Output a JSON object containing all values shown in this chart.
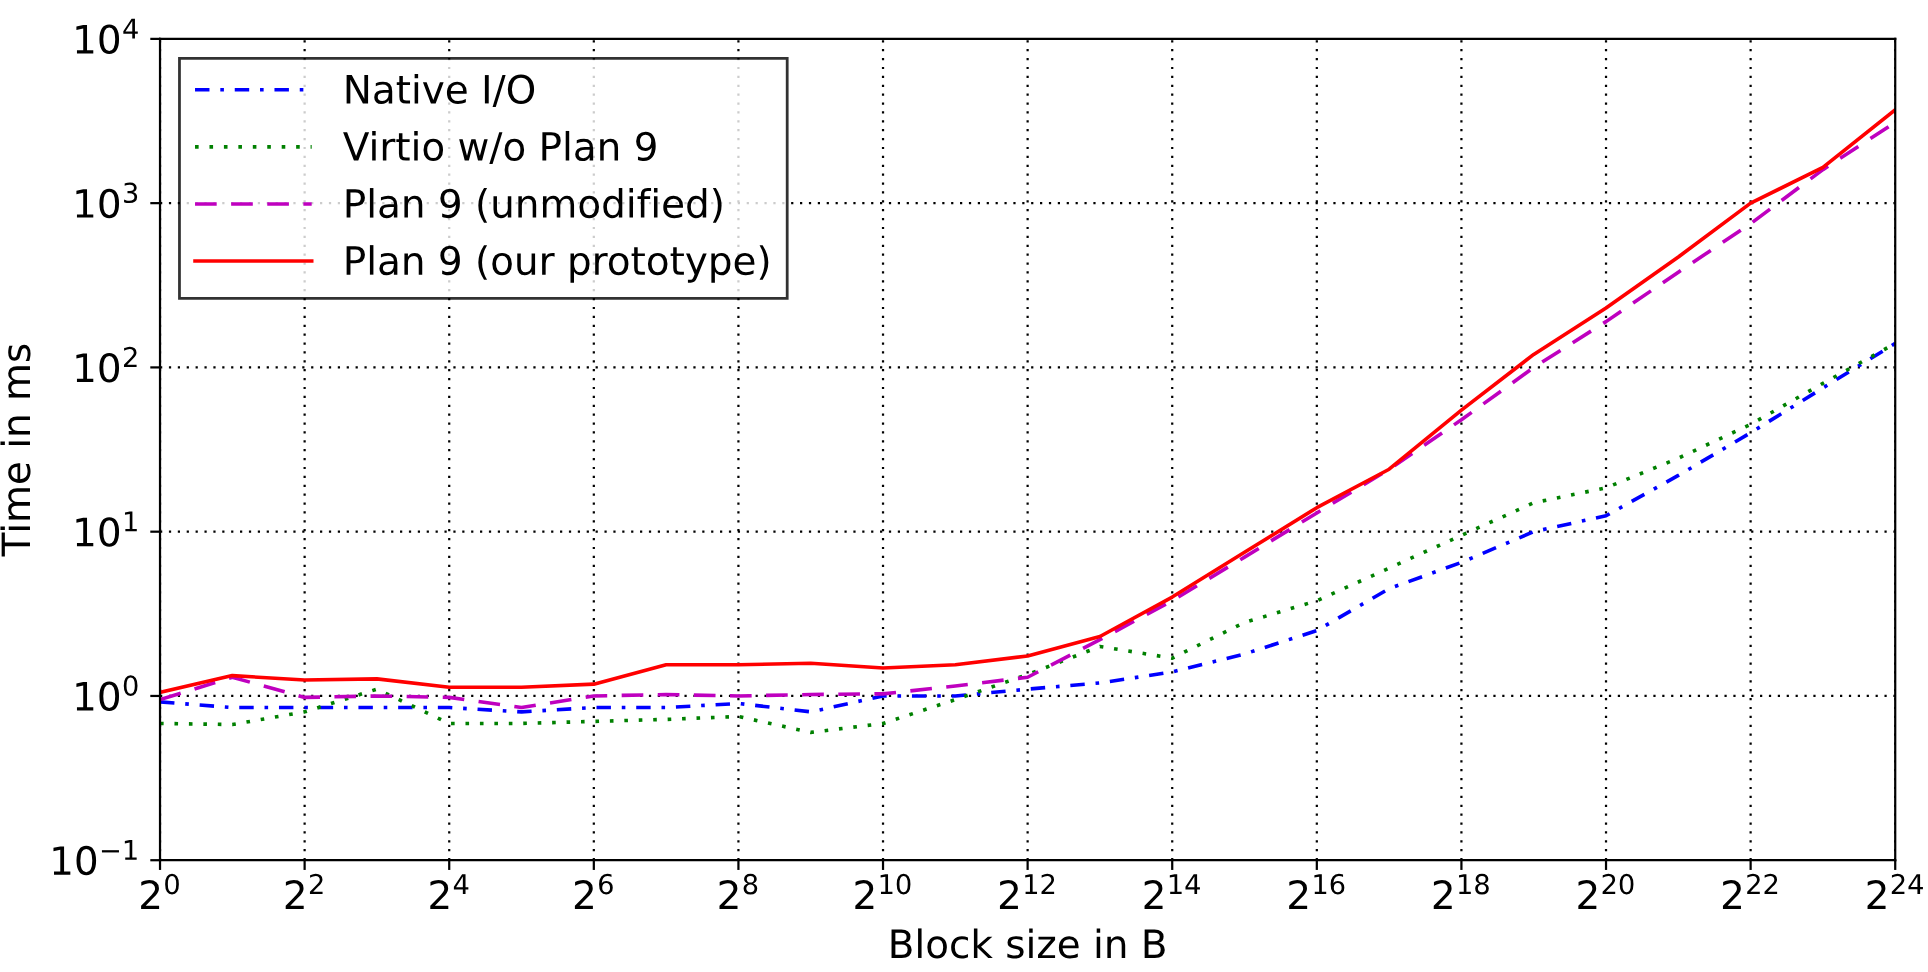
{
  "chart_data": {
    "type": "line",
    "xlabel": "Block size in B",
    "ylabel": "Time in ms",
    "log": "xy",
    "grid": true,
    "legend": "top left",
    "x": [
      1,
      2,
      4,
      8,
      16,
      32,
      64,
      128,
      256,
      512,
      1024,
      2048,
      4096,
      8192,
      16384,
      32768,
      65536,
      131072,
      262144,
      524288,
      1048576,
      2097152,
      4194304,
      8388608,
      16777216
    ],
    "xlim": [
      1,
      16777216
    ],
    "xticks": [
      {
        "value": 1,
        "label": "2$^{0}$"
      },
      {
        "value": 4,
        "label": "2$^{2}$"
      },
      {
        "value": 16,
        "label": "2$^{4}$"
      },
      {
        "value": 64,
        "label": "2$^{6}$"
      },
      {
        "value": 256,
        "label": "2$^{8}$"
      },
      {
        "value": 1024,
        "label": "2$^{10}$"
      },
      {
        "value": 4096,
        "label": "2$^{12}$"
      },
      {
        "value": 16384,
        "label": "2$^{14}$"
      },
      {
        "value": 65536,
        "label": "2$^{16}$"
      },
      {
        "value": 262144,
        "label": "2$^{18}$"
      },
      {
        "value": 1048576,
        "label": "2$^{20}$"
      },
      {
        "value": 4194304,
        "label": "2$^{22}$"
      },
      {
        "value": 16777216,
        "label": "2$^{24}$"
      }
    ],
    "ylim": [
      0.1,
      10000
    ],
    "yticks": [
      {
        "value": 0.1,
        "label": "10$^{−1}$"
      },
      {
        "value": 1,
        "label": "10$^{0}$"
      },
      {
        "value": 10,
        "label": "10$^{1}$"
      },
      {
        "value": 100,
        "label": "10$^{2}$"
      },
      {
        "value": 1000,
        "label": "10$^{3}$"
      },
      {
        "value": 10000,
        "label": "10$^{4}$"
      }
    ],
    "series": [
      {
        "name": "Native I/O",
        "color": "#0000ff",
        "line_style": "dashdot",
        "values": [
          0.92,
          0.85,
          0.85,
          0.85,
          0.85,
          0.8,
          0.85,
          0.85,
          0.9,
          0.8,
          1.0,
          1.0,
          1.1,
          1.2,
          1.4,
          1.8,
          2.5,
          4.5,
          6.5,
          10,
          12.5,
          22,
          40,
          75,
          140
        ]
      },
      {
        "name": "Virtio w/o Plan 9",
        "color": "#008000",
        "line_style": "dotted",
        "values": [
          0.68,
          0.67,
          0.8,
          1.1,
          0.68,
          0.68,
          0.7,
          0.72,
          0.75,
          0.6,
          0.68,
          0.95,
          1.35,
          2.0,
          1.7,
          2.8,
          3.8,
          6,
          9.5,
          15,
          18.5,
          28,
          45,
          80,
          140
        ]
      },
      {
        "name": "Plan 9 (unmodified)",
        "color": "#bf00bf",
        "line_style": "dashed",
        "values": [
          0.95,
          1.3,
          0.98,
          1.0,
          0.98,
          0.85,
          1.0,
          1.02,
          1.0,
          1.02,
          1.03,
          1.15,
          1.3,
          2.2,
          3.8,
          7,
          13,
          24,
          48,
          100,
          190,
          380,
          750,
          1600,
          3100
        ]
      },
      {
        "name": "Plan 9 (our prototype)",
        "color": "#ff0000",
        "line_style": "solid",
        "values": [
          1.05,
          1.33,
          1.25,
          1.27,
          1.13,
          1.13,
          1.18,
          1.55,
          1.55,
          1.58,
          1.48,
          1.55,
          1.75,
          2.3,
          4.0,
          7.5,
          14,
          24,
          55,
          120,
          230,
          470,
          1000,
          1650,
          3700
        ]
      }
    ]
  }
}
